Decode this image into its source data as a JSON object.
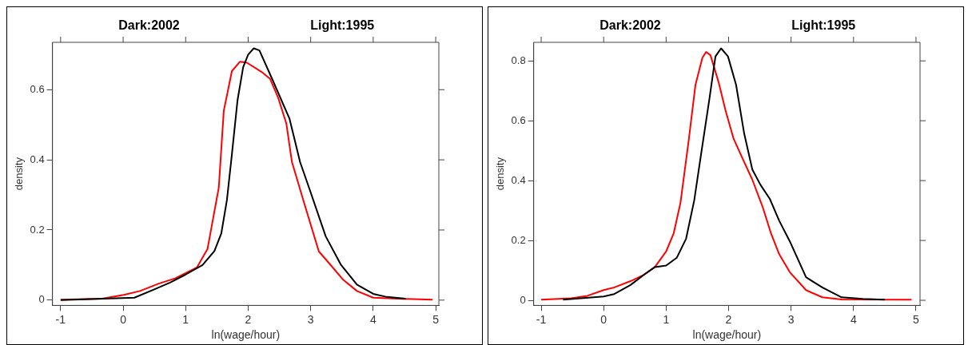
{
  "chart_data": [
    {
      "type": "line",
      "annotations": [
        "Dark:2002",
        "Light:1995"
      ],
      "xlabel": "ln(wage/hour)",
      "ylabel": "density",
      "xlim": [
        -1.13,
        5.05
      ],
      "ylim": [
        -0.015,
        0.735
      ],
      "xticks": [
        -1,
        0,
        1,
        2,
        3,
        4,
        5
      ],
      "yticks": [
        0,
        0.2,
        0.4,
        0.6
      ],
      "grid": false,
      "legend": false,
      "marker": "none",
      "line_style": "solid",
      "series": [
        {
          "color": "#000000",
          "x": [
            -1,
            0.18,
            0.49,
            0.75,
            1,
            1.27,
            1.46,
            1.57,
            1.66,
            1.74,
            1.83,
            1.92,
            2.0,
            2.09,
            2.18,
            2.39,
            2.66,
            2.83,
            3.0,
            3.24,
            3.48,
            3.74,
            4.0,
            4.22,
            4.52
          ],
          "values": [
            0,
            0.007,
            0.03,
            0.05,
            0.073,
            0.1,
            0.14,
            0.19,
            0.285,
            0.416,
            0.57,
            0.664,
            0.7,
            0.718,
            0.712,
            0.628,
            0.518,
            0.394,
            0.307,
            0.182,
            0.102,
            0.044,
            0.018,
            0.009,
            0.004
          ]
        },
        {
          "color": "#ff0000",
          "x": [
            -1,
            -0.34,
            0.01,
            0.27,
            0.57,
            0.83,
            1.18,
            1.35,
            1.53,
            1.61,
            1.74,
            1.87,
            1.98,
            2.22,
            2.35,
            2.48,
            2.61,
            2.7,
            2.87,
            3.13,
            3.31,
            3.52,
            3.74,
            4.0,
            4.39,
            4.95
          ],
          "values": [
            0.001,
            0.004,
            0.015,
            0.026,
            0.047,
            0.062,
            0.093,
            0.146,
            0.321,
            0.54,
            0.653,
            0.68,
            0.677,
            0.65,
            0.631,
            0.577,
            0.504,
            0.394,
            0.292,
            0.139,
            0.102,
            0.058,
            0.026,
            0.007,
            0.004,
            0.001
          ]
        }
      ]
    },
    {
      "type": "line",
      "annotations": [
        "Dark:2002",
        "Light:1995"
      ],
      "xlabel": "ln(wage/hour)",
      "ylabel": "density",
      "xlim": [
        -1.12,
        5.065
      ],
      "ylim": [
        -0.017,
        0.862
      ],
      "xticks": [
        -1,
        0,
        1,
        2,
        3,
        4,
        5
      ],
      "yticks": [
        0,
        0.2,
        0.4,
        0.6,
        0.8
      ],
      "grid": false,
      "legend": false,
      "marker": "none",
      "line_style": "solid",
      "series": [
        {
          "color": "#000000",
          "x": [
            -0.65,
            0,
            0.17,
            0.43,
            0.65,
            0.82,
            1.0,
            1.17,
            1.32,
            1.45,
            1.56,
            1.69,
            1.79,
            1.88,
            1.99,
            2.12,
            2.25,
            2.38,
            2.51,
            2.66,
            2.81,
            2.98,
            3.11,
            3.24,
            3.5,
            3.81,
            4.15,
            4.5
          ],
          "values": [
            0.002,
            0.013,
            0.021,
            0.051,
            0.086,
            0.111,
            0.116,
            0.142,
            0.206,
            0.334,
            0.489,
            0.669,
            0.815,
            0.842,
            0.815,
            0.72,
            0.557,
            0.437,
            0.386,
            0.339,
            0.266,
            0.197,
            0.137,
            0.077,
            0.043,
            0.01,
            0.005,
            0.002
          ]
        },
        {
          "color": "#ff0000",
          "x": [
            -1,
            -0.52,
            -0.26,
            0,
            0.17,
            0.43,
            0.65,
            0.82,
            1.0,
            1.12,
            1.23,
            1.36,
            1.47,
            1.58,
            1.64,
            1.71,
            1.84,
            1.95,
            2.08,
            2.21,
            2.38,
            2.55,
            2.68,
            2.81,
            2.98,
            3.24,
            3.5,
            3.81,
            4.93
          ],
          "values": [
            0.002,
            0.007,
            0.015,
            0.034,
            0.043,
            0.064,
            0.086,
            0.111,
            0.163,
            0.223,
            0.326,
            0.532,
            0.72,
            0.81,
            0.83,
            0.819,
            0.729,
            0.635,
            0.54,
            0.48,
            0.403,
            0.309,
            0.223,
            0.154,
            0.094,
            0.034,
            0.01,
            0.003,
            0.002
          ]
        }
      ]
    }
  ]
}
